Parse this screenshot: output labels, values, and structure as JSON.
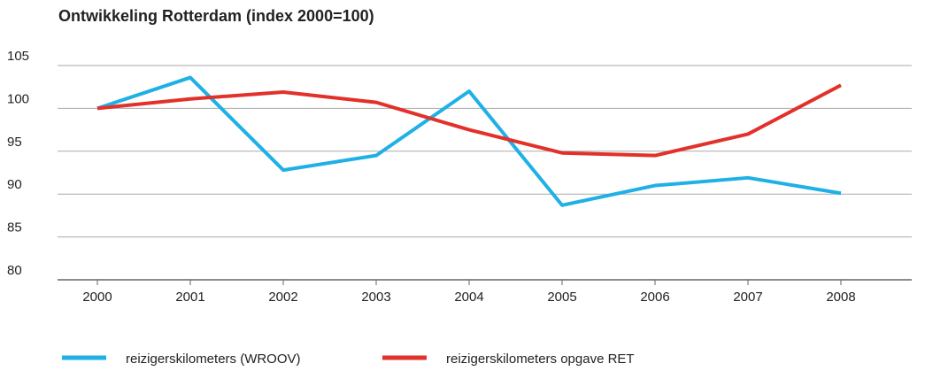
{
  "chart_data": {
    "type": "line",
    "title": "Ontwikkeling Rotterdam (index 2000=100)",
    "categories": [
      "2000",
      "2001",
      "2002",
      "2003",
      "2004",
      "2005",
      "2006",
      "2007",
      "2008"
    ],
    "series": [
      {
        "name": "reizigerskilometers (WROOV)",
        "color": "#1fb0e6",
        "values": [
          100,
          103.6,
          92.8,
          94.5,
          102,
          88.7,
          91,
          91.9,
          90.1
        ]
      },
      {
        "name": "reizigerskilometers opgave RET",
        "color": "#e2312a",
        "values": [
          100,
          101.1,
          101.9,
          100.7,
          97.5,
          94.8,
          94.5,
          97,
          102.7
        ]
      }
    ],
    "ylim": [
      80,
      105
    ],
    "yticks": [
      80,
      85,
      90,
      95,
      100,
      105
    ],
    "grid": true,
    "legend": "bottom"
  }
}
